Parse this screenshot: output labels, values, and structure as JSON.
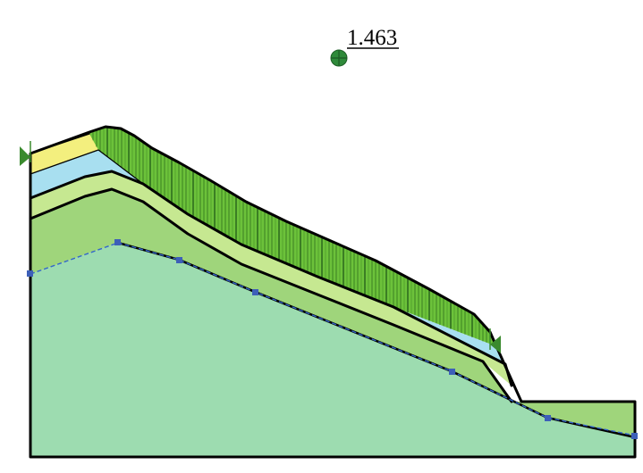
{
  "factor_of_safety": {
    "value": "1.463",
    "center_icon": "crosshair-circle-icon"
  },
  "slope_model": {
    "layers": [
      {
        "id": "yellow",
        "color": "#f3ef7e"
      },
      {
        "id": "cyan",
        "color": "#a8dff0"
      },
      {
        "id": "light-green",
        "color": "#c6e891"
      },
      {
        "id": "mid-green",
        "color": "#9fd57b"
      },
      {
        "id": "base",
        "color": "#9ddcb0"
      }
    ],
    "slice_color": "#6cc23a",
    "slip_surface_color": "#3366cc",
    "boundary_color": "#000000"
  }
}
